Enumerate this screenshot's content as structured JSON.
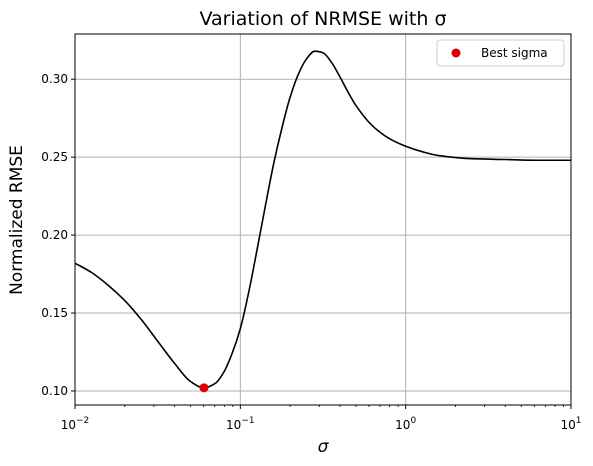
{
  "chart_data": {
    "type": "line",
    "title": "Variation of NRMSE with σ",
    "xlabel": "σ",
    "ylabel": "Normalized RMSE",
    "x_scale": "log",
    "xlim": [
      0.01,
      10
    ],
    "ylim": [
      0.091,
      0.329
    ],
    "x_ticks": [
      0.01,
      0.1,
      1,
      10
    ],
    "x_tick_labels": [
      {
        "base": "10",
        "exp": "−2"
      },
      {
        "base": "10",
        "exp": "−1"
      },
      {
        "base": "10",
        "exp": "0"
      },
      {
        "base": "10",
        "exp": "1"
      }
    ],
    "y_ticks": [
      0.1,
      0.15,
      0.2,
      0.25,
      0.3
    ],
    "y_tick_labels": [
      "0.10",
      "0.15",
      "0.20",
      "0.25",
      "0.30"
    ],
    "grid": true,
    "legend_position": "top-right",
    "series": [
      {
        "type": "line",
        "color": "#000000",
        "points": [
          [
            0.01,
            0.182
          ],
          [
            0.0126,
            0.176
          ],
          [
            0.0158,
            0.168
          ],
          [
            0.02,
            0.158
          ],
          [
            0.0251,
            0.146
          ],
          [
            0.0316,
            0.132
          ],
          [
            0.0398,
            0.118
          ],
          [
            0.0501,
            0.106
          ],
          [
            0.0603,
            0.102
          ],
          [
            0.0708,
            0.105
          ],
          [
            0.0794,
            0.112
          ],
          [
            0.0891,
            0.124
          ],
          [
            0.1,
            0.14
          ],
          [
            0.1122,
            0.163
          ],
          [
            0.1259,
            0.19
          ],
          [
            0.1413,
            0.218
          ],
          [
            0.1585,
            0.245
          ],
          [
            0.1778,
            0.268
          ],
          [
            0.1995,
            0.288
          ],
          [
            0.2239,
            0.303
          ],
          [
            0.2512,
            0.313
          ],
          [
            0.2818,
            0.318
          ],
          [
            0.3162,
            0.317
          ],
          [
            0.3548,
            0.311
          ],
          [
            0.3981,
            0.302
          ],
          [
            0.4467,
            0.292
          ],
          [
            0.5012,
            0.283
          ],
          [
            0.631,
            0.27
          ],
          [
            0.7943,
            0.262
          ],
          [
            1.0,
            0.257
          ],
          [
            1.2589,
            0.2535
          ],
          [
            1.5849,
            0.251
          ],
          [
            2.5119,
            0.249
          ],
          [
            3.9811,
            0.2485
          ],
          [
            6.3096,
            0.248
          ],
          [
            10.0,
            0.248
          ]
        ]
      },
      {
        "name": "Best sigma",
        "type": "scatter",
        "color": "#e00000",
        "points": [
          [
            0.0603,
            0.102
          ]
        ]
      }
    ]
  }
}
